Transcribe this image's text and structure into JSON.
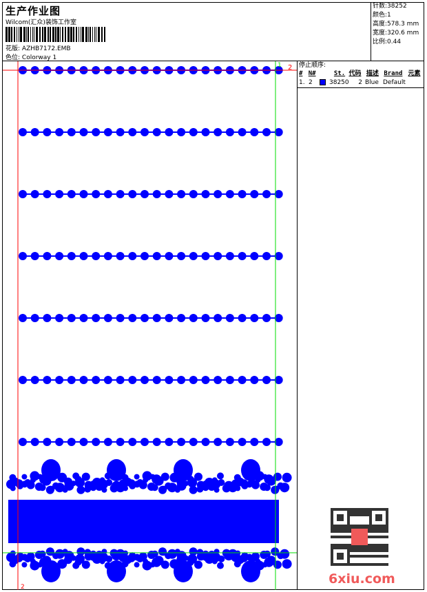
{
  "header": {
    "title": "生产作业图",
    "studio": "Wilcom(汇众)装饰工作室",
    "design_label": "花版:",
    "design_value": "AZHB7172.EMB",
    "colorway_label": "色位:",
    "colorway_value": "Colorway 1"
  },
  "stats": [
    {
      "label": "针数:",
      "value": "38252"
    },
    {
      "label": "颜色:",
      "value": "1"
    },
    {
      "label": "高度:",
      "value": "578.3 mm"
    },
    {
      "label": "宽度:",
      "value": "320.6 mm"
    },
    {
      "label": "比例:",
      "value": "0.44"
    }
  ],
  "stop_sequence": {
    "title": "停止顺序:",
    "columns": [
      "#",
      "N#",
      "St.",
      "代码",
      "描述",
      "Brand",
      "元素"
    ],
    "rows": [
      {
        "index": "1.",
        "needle": "2",
        "color": "#0000ff",
        "stitches": "38250",
        "code": "2",
        "description": "Blue",
        "brand": "Default"
      }
    ]
  },
  "markers": {
    "start": "1",
    "end": "2",
    "start_color": "#00dd00",
    "end_color": "#ff0000"
  },
  "thread_color": "#0000ff",
  "watermark": "6xiu.com"
}
